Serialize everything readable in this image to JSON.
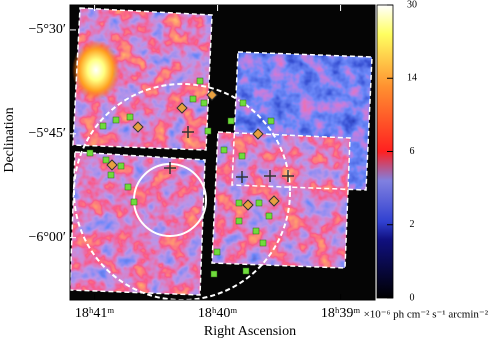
{
  "chart_data": {
    "type": "image",
    "x_label": "Right Ascension",
    "y_label": "Declination",
    "colorbar_label": "×10⁻⁶ ph cm⁻² s⁻¹ arcmin⁻²",
    "xlim": [
      1121.2,
      1118.72
    ],
    "xticks": [
      {
        "value": 1121,
        "label": "18ʰ41ᵐ"
      },
      {
        "value": 1120,
        "label": "18ʰ40ᵐ"
      },
      {
        "value": 1119,
        "label": "18ʰ39ᵐ"
      }
    ],
    "ylim": [
      -5.44,
      -6.15
    ],
    "yticks": [
      {
        "value": -5.5,
        "label": "−5°30′"
      },
      {
        "value": -5.75,
        "label": "−5°45′"
      },
      {
        "value": -6.0,
        "label": "−6°00′"
      }
    ],
    "clim": [
      0,
      30
    ],
    "cticks": [
      0,
      2,
      6,
      14,
      30
    ]
  }
}
